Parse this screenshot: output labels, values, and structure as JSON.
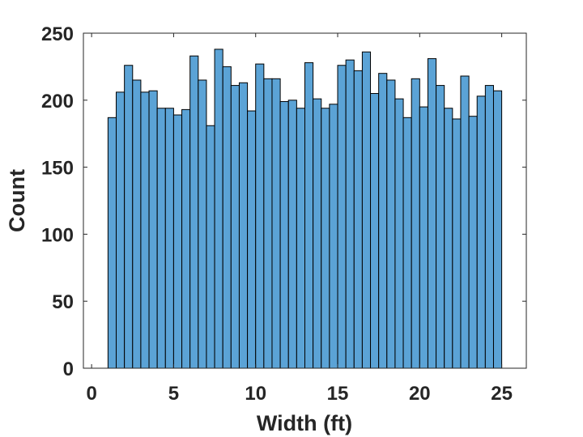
{
  "chart_data": {
    "type": "bar",
    "title": "",
    "xlabel": "Width (ft)",
    "ylabel": "Count",
    "xlim": [
      -0.5,
      26.5
    ],
    "ylim": [
      0,
      250
    ],
    "xticks": [
      0,
      5,
      10,
      15,
      20,
      25
    ],
    "yticks": [
      0,
      50,
      100,
      150,
      200,
      250
    ],
    "grid": false,
    "bin_edges": [
      1.0,
      1.5,
      2.0,
      2.5,
      3.0,
      3.5,
      4.0,
      4.5,
      5.0,
      5.5,
      6.0,
      6.5,
      7.0,
      7.5,
      8.0,
      8.5,
      9.0,
      9.5,
      10.0,
      10.5,
      11.0,
      11.5,
      12.0,
      12.5,
      13.0,
      13.5,
      14.0,
      14.5,
      15.0,
      15.5,
      16.0,
      16.5,
      17.0,
      17.5,
      18.0,
      18.5,
      19.0,
      19.5,
      20.0,
      20.5,
      21.0,
      21.5,
      22.0,
      22.5,
      23.0,
      23.5,
      24.0,
      24.5,
      25.0
    ],
    "values": [
      187,
      206,
      226,
      215,
      206,
      207,
      194,
      194,
      189,
      193,
      233,
      215,
      181,
      238,
      225,
      211,
      213,
      192,
      227,
      216,
      216,
      199,
      200,
      194,
      228,
      201,
      194,
      197,
      226,
      230,
      222,
      236,
      205,
      220,
      215,
      201,
      187,
      216,
      195,
      231,
      211,
      194,
      186,
      218,
      188,
      203,
      211,
      207
    ],
    "colors": {
      "bar_fill": "#5ba3d6",
      "bar_edge": "#000000",
      "axis": "#262626"
    }
  }
}
